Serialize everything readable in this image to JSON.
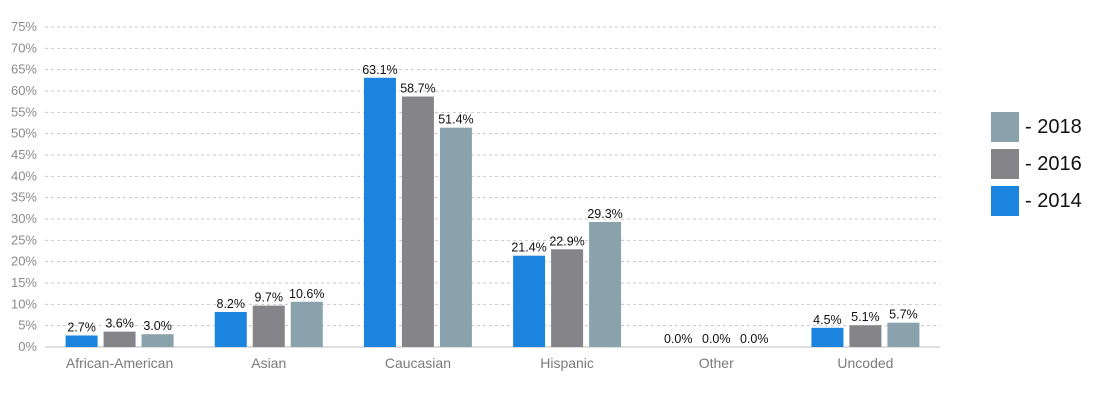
{
  "chart_data": {
    "type": "bar",
    "categories": [
      "African-American",
      "Asian",
      "Caucasian",
      "Hispanic",
      "Other",
      "Uncoded"
    ],
    "series": [
      {
        "name": "2014",
        "values": [
          2.7,
          8.2,
          63.1,
          21.4,
          0.0,
          4.5
        ],
        "color": "#1a84de"
      },
      {
        "name": "2016",
        "values": [
          3.6,
          9.7,
          58.7,
          22.9,
          0.0,
          5.1
        ],
        "color": "#858489"
      },
      {
        "name": "2018",
        "values": [
          3.0,
          10.6,
          51.4,
          29.3,
          0.0,
          5.7
        ],
        "color": "#8aa2ab"
      }
    ],
    "data_labels": [
      [
        "2.7%",
        "8.2%",
        "63.1%",
        "21.4%",
        "0.0%",
        "4.5%"
      ],
      [
        "3.6%",
        "9.7%",
        "58.7%",
        "22.9%",
        "0.0%",
        "5.1%"
      ],
      [
        "3.0%",
        "10.6%",
        "51.4%",
        "29.3%",
        "0.0%",
        "5.7%"
      ]
    ],
    "ylim": [
      0,
      75
    ],
    "yticks": [
      "0%",
      "5%",
      "10%",
      "15%",
      "20%",
      "25%",
      "30%",
      "35%",
      "40%",
      "45%",
      "50%",
      "55%",
      "60%",
      "65%",
      "70%",
      "75%"
    ],
    "title": "",
    "xlabel": "",
    "ylabel": "",
    "grid": true,
    "legend_position": "right",
    "legend": [
      "- 2018",
      "- 2016",
      "- 2014"
    ]
  }
}
